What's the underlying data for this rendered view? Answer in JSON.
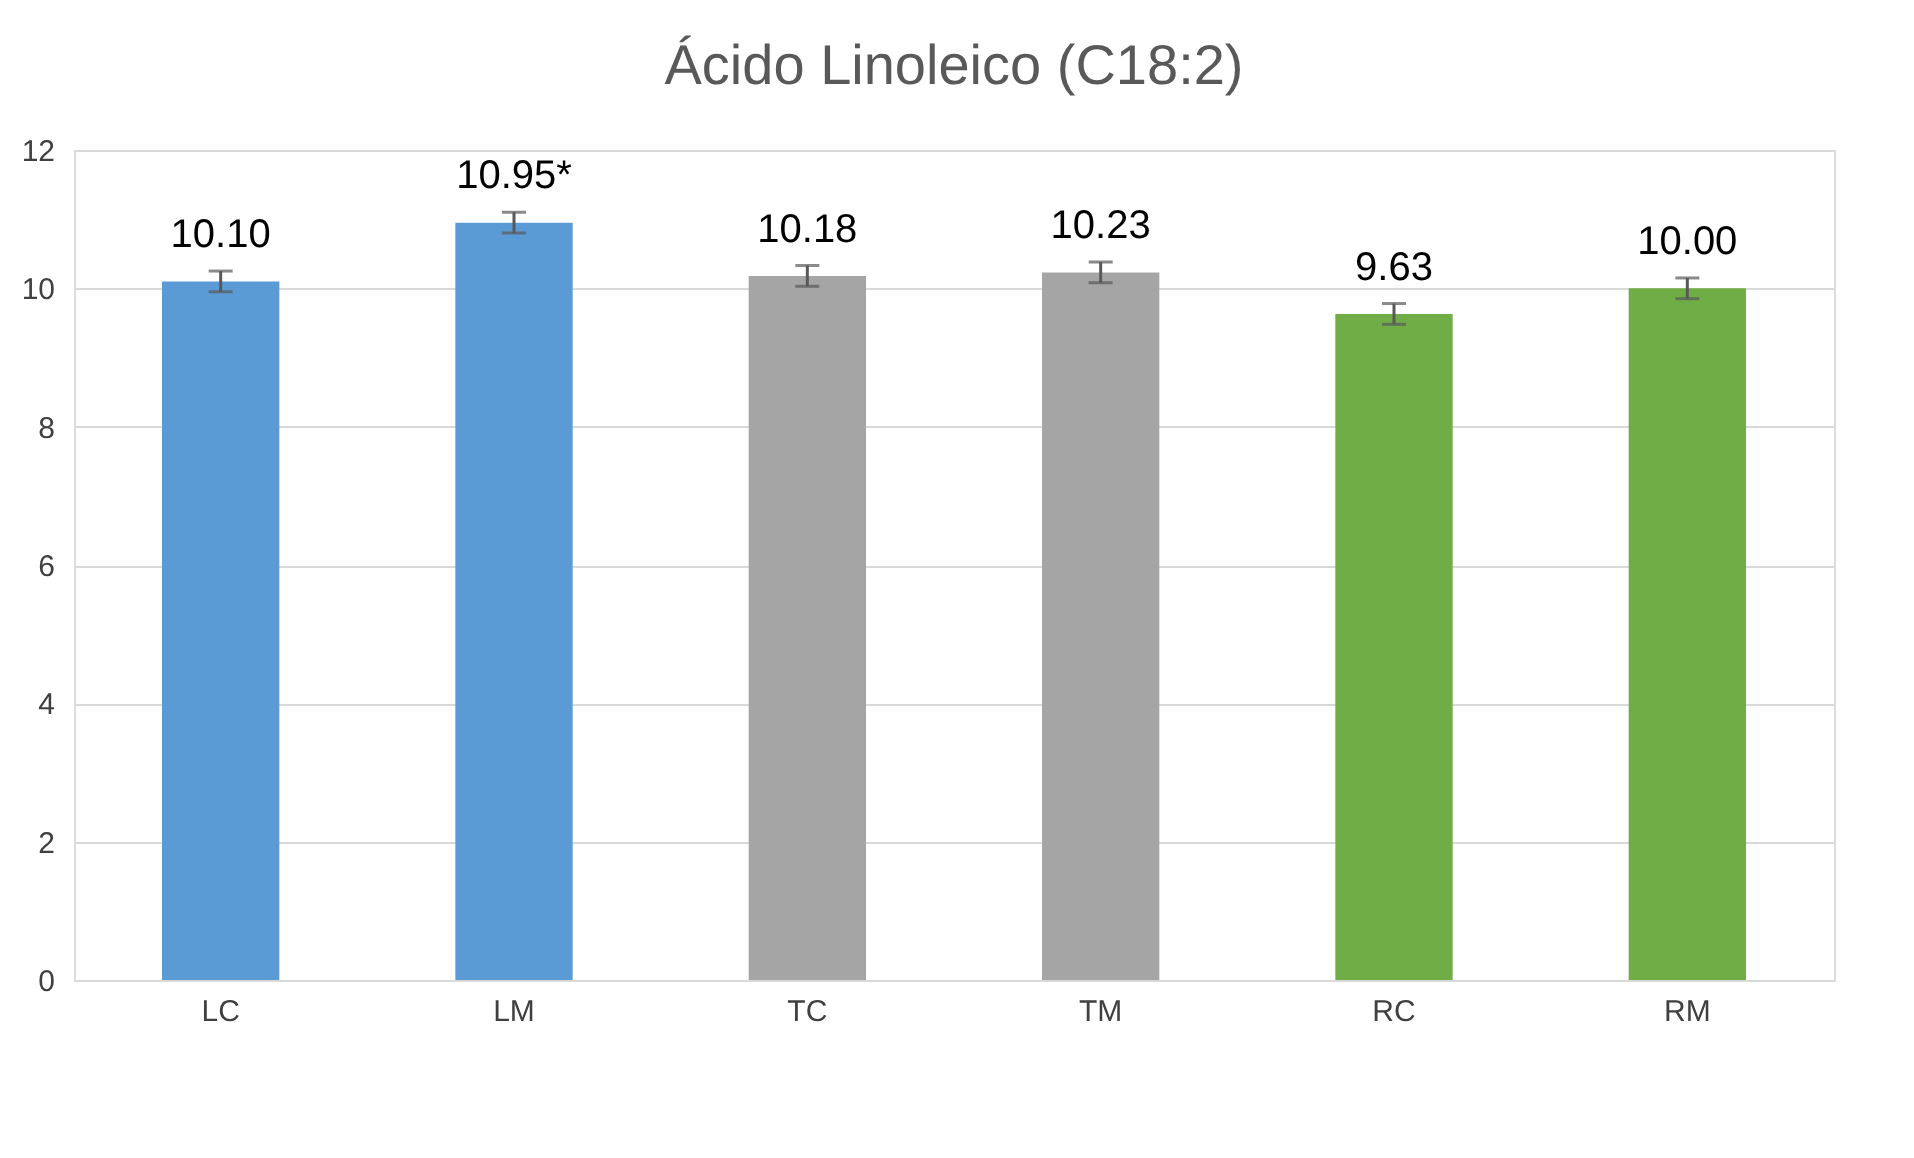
{
  "chart_data": {
    "type": "bar",
    "title": "Ácido Linoleico (C18:2)",
    "categories": [
      "LC",
      "LM",
      "TC",
      "TM",
      "RC",
      "RM"
    ],
    "values": [
      10.1,
      10.95,
      10.18,
      10.23,
      9.63,
      10.0
    ],
    "colors": [
      "#5b9bd5",
      "#5b9bd5",
      "#a5a5a5",
      "#a5a5a5",
      "#70ad47",
      "#70ad47"
    ],
    "errors": [
      0.15,
      0.15,
      0.15,
      0.15,
      0.15,
      0.15
    ],
    "value_labels": [
      "10.10",
      "10.95*",
      "10.18",
      "10.23",
      "9.63",
      "10.00"
    ],
    "ylim": [
      0,
      12
    ],
    "yticks": [
      0,
      2,
      4,
      6,
      8,
      10,
      12
    ],
    "grid": "y",
    "legend": false
  }
}
